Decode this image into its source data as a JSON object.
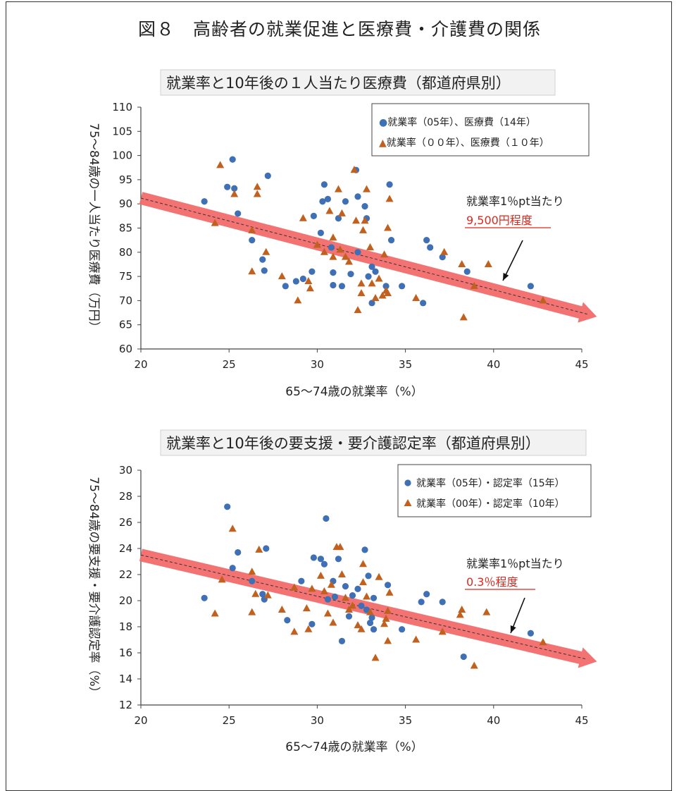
{
  "figure_title": "図８　高齢者の就業促進と医療費・介護費の関係",
  "colors": {
    "series_05": "#3f6fb5",
    "series_00": "#c0611f",
    "trend_band": "#f26b6b",
    "annotation_red": "#e0281e"
  },
  "chart_data": [
    {
      "type": "scatter",
      "title": "就業率と10年後の１人当たり医療費（都道府県別）",
      "xlabel": "65～74歳の就業率（%）",
      "ylabel": "75～84歳の一人当たり医療費（万円）",
      "xlim": [
        20,
        45
      ],
      "ylim": [
        60,
        110
      ],
      "xticks": [
        20,
        25,
        30,
        35,
        40,
        45
      ],
      "yticks": [
        60,
        65,
        70,
        75,
        80,
        85,
        90,
        95,
        100,
        105,
        110
      ],
      "legend_position": "top-right",
      "annotation": {
        "text": "就業率1％pt当たり",
        "value": "9,500円程度"
      },
      "trend": {
        "x": [
          20,
          45
        ],
        "y": [
          91.2,
          67.5
        ]
      },
      "series": [
        {
          "name": "●就業率（05年）、医療費（14年）",
          "marker": "circle",
          "points": [
            [
              23.6,
              90.5
            ],
            [
              24.9,
              93.5
            ],
            [
              25.2,
              99.2
            ],
            [
              25.3,
              93.2
            ],
            [
              25.5,
              88.0
            ],
            [
              26.3,
              82.5
            ],
            [
              26.9,
              78.5
            ],
            [
              27.0,
              76.2
            ],
            [
              27.2,
              95.8
            ],
            [
              28.2,
              73.0
            ],
            [
              28.8,
              74.0
            ],
            [
              29.2,
              74.5
            ],
            [
              29.7,
              76.0
            ],
            [
              29.8,
              87.5
            ],
            [
              30.2,
              84.0
            ],
            [
              30.3,
              90.5
            ],
            [
              30.4,
              94.0
            ],
            [
              30.6,
              91.0
            ],
            [
              30.8,
              81.0
            ],
            [
              30.9,
              75.8
            ],
            [
              30.9,
              73.2
            ],
            [
              31.2,
              87.0
            ],
            [
              31.4,
              73.0
            ],
            [
              31.6,
              90.5
            ],
            [
              31.9,
              75.5
            ],
            [
              32.2,
              97.0
            ],
            [
              32.3,
              91.5
            ],
            [
              32.3,
              80.0
            ],
            [
              32.7,
              89.5
            ],
            [
              32.8,
              87.0
            ],
            [
              32.9,
              75.0
            ],
            [
              33.1,
              69.5
            ],
            [
              33.1,
              77.0
            ],
            [
              33.3,
              76.0
            ],
            [
              33.9,
              73.0
            ],
            [
              34.1,
              94.0
            ],
            [
              34.2,
              82.5
            ],
            [
              34.8,
              73.0
            ],
            [
              36.0,
              69.5
            ],
            [
              36.2,
              82.5
            ],
            [
              36.4,
              81.0
            ],
            [
              37.1,
              79.0
            ],
            [
              38.5,
              76.0
            ],
            [
              42.1,
              73.0
            ]
          ]
        },
        {
          "name": "▲就業率（００年）、医療費（１０年）",
          "marker": "triangle",
          "points": [
            [
              24.5,
              98.0
            ],
            [
              24.2,
              86.0
            ],
            [
              25.3,
              92.0
            ],
            [
              26.3,
              84.5
            ],
            [
              26.3,
              76.0
            ],
            [
              26.6,
              93.5
            ],
            [
              26.6,
              92.0
            ],
            [
              27.1,
              80.0
            ],
            [
              28.0,
              75.0
            ],
            [
              28.9,
              70.0
            ],
            [
              29.2,
              87.0
            ],
            [
              29.5,
              74.0
            ],
            [
              29.6,
              72.5
            ],
            [
              30.0,
              81.5
            ],
            [
              30.4,
              80.0
            ],
            [
              30.7,
              88.5
            ],
            [
              30.9,
              83.0
            ],
            [
              30.9,
              79.0
            ],
            [
              31.2,
              93.0
            ],
            [
              31.3,
              80.5
            ],
            [
              31.4,
              88.0
            ],
            [
              31.6,
              79.0
            ],
            [
              31.8,
              78.0
            ],
            [
              32.1,
              97.0
            ],
            [
              32.2,
              86.5
            ],
            [
              32.3,
              68.0
            ],
            [
              32.5,
              73.5
            ],
            [
              32.5,
              71.5
            ],
            [
              32.6,
              84.5
            ],
            [
              32.7,
              86.5
            ],
            [
              32.8,
              93.0
            ],
            [
              33.0,
              81.0
            ],
            [
              33.1,
              73.5
            ],
            [
              33.3,
              70.5
            ],
            [
              33.5,
              74.5
            ],
            [
              33.7,
              71.0
            ],
            [
              33.8,
              79.5
            ],
            [
              33.9,
              72.0
            ],
            [
              34.0,
              85.0
            ],
            [
              34.0,
              71.5
            ],
            [
              34.1,
              91.0
            ],
            [
              35.6,
              70.5
            ],
            [
              37.2,
              80.0
            ],
            [
              38.2,
              77.5
            ],
            [
              38.3,
              66.5
            ],
            [
              38.9,
              73.0
            ],
            [
              39.7,
              77.5
            ],
            [
              42.8,
              70.0
            ]
          ]
        }
      ]
    },
    {
      "type": "scatter",
      "title": "就業率と10年後の要支援・要介護認定率（都道府県別）",
      "xlabel": "65～74歳の就業率（%）",
      "ylabel": "75～84歳の要支援・要介護認定率（%）",
      "xlim": [
        20,
        45
      ],
      "ylim": [
        12,
        30
      ],
      "xticks": [
        20,
        25,
        30,
        35,
        40,
        45
      ],
      "yticks": [
        12,
        14,
        16,
        18,
        20,
        22,
        24,
        26,
        28,
        30
      ],
      "legend_position": "top-right",
      "annotation": {
        "text": "就業率1％pt当たり",
        "value": "0.3％程度"
      },
      "trend": {
        "x": [
          20,
          45
        ],
        "y": [
          23.5,
          15.6
        ]
      },
      "series": [
        {
          "name": "就業率（05年）・認定率（15年）",
          "marker": "circle",
          "points": [
            [
              23.6,
              20.2
            ],
            [
              24.9,
              27.2
            ],
            [
              25.2,
              22.5
            ],
            [
              25.5,
              23.7
            ],
            [
              26.3,
              21.5
            ],
            [
              26.9,
              20.5
            ],
            [
              27.0,
              20.1
            ],
            [
              27.1,
              24.0
            ],
            [
              28.3,
              18.5
            ],
            [
              29.1,
              21.5
            ],
            [
              29.7,
              18.2
            ],
            [
              29.8,
              23.3
            ],
            [
              30.2,
              23.2
            ],
            [
              30.4,
              22.8
            ],
            [
              30.5,
              26.3
            ],
            [
              30.6,
              20.1
            ],
            [
              30.9,
              21.5
            ],
            [
              31.0,
              20.3
            ],
            [
              31.2,
              23.2
            ],
            [
              31.4,
              16.9
            ],
            [
              31.6,
              21.1
            ],
            [
              31.8,
              18.8
            ],
            [
              32.0,
              20.4
            ],
            [
              32.3,
              20.9
            ],
            [
              32.5,
              19.6
            ],
            [
              32.7,
              23.9
            ],
            [
              32.8,
              19.3
            ],
            [
              32.9,
              21.9
            ],
            [
              33.0,
              18.3
            ],
            [
              33.1,
              18.7
            ],
            [
              33.2,
              17.8
            ],
            [
              33.2,
              20.2
            ],
            [
              34.0,
              21.2
            ],
            [
              34.8,
              17.8
            ],
            [
              35.9,
              19.9
            ],
            [
              36.2,
              20.5
            ],
            [
              37.1,
              19.9
            ],
            [
              38.3,
              15.7
            ],
            [
              42.1,
              17.5
            ]
          ]
        },
        {
          "name": "就業率（00年）・認定率（10年）",
          "marker": "triangle",
          "points": [
            [
              24.2,
              19.0
            ],
            [
              24.6,
              21.6
            ],
            [
              25.2,
              25.5
            ],
            [
              26.3,
              22.2
            ],
            [
              26.3,
              19.1
            ],
            [
              26.5,
              20.5
            ],
            [
              26.7,
              23.9
            ],
            [
              27.2,
              20.4
            ],
            [
              28.0,
              19.3
            ],
            [
              28.7,
              17.6
            ],
            [
              28.7,
              21.0
            ],
            [
              29.4,
              19.4
            ],
            [
              29.5,
              17.8
            ],
            [
              29.7,
              20.9
            ],
            [
              30.2,
              21.9
            ],
            [
              30.4,
              20.7
            ],
            [
              30.6,
              19.0
            ],
            [
              30.8,
              21.2
            ],
            [
              30.9,
              18.3
            ],
            [
              31.1,
              24.1
            ],
            [
              31.3,
              24.1
            ],
            [
              31.4,
              22.0
            ],
            [
              31.6,
              20.2
            ],
            [
              31.8,
              19.3
            ],
            [
              32.0,
              19.6
            ],
            [
              32.3,
              18.1
            ],
            [
              32.5,
              17.8
            ],
            [
              32.6,
              21.4
            ],
            [
              32.6,
              22.8
            ],
            [
              32.8,
              20.3
            ],
            [
              33.0,
              19.1
            ],
            [
              33.3,
              15.6
            ],
            [
              33.5,
              21.8
            ],
            [
              33.8,
              18.2
            ],
            [
              33.9,
              18.6
            ],
            [
              34.0,
              16.9
            ],
            [
              34.0,
              19.2
            ],
            [
              34.1,
              20.6
            ],
            [
              35.6,
              17.0
            ],
            [
              37.1,
              17.6
            ],
            [
              38.1,
              18.9
            ],
            [
              38.2,
              19.3
            ],
            [
              38.9,
              15.0
            ],
            [
              39.6,
              19.1
            ],
            [
              42.8,
              16.8
            ]
          ]
        }
      ]
    }
  ]
}
